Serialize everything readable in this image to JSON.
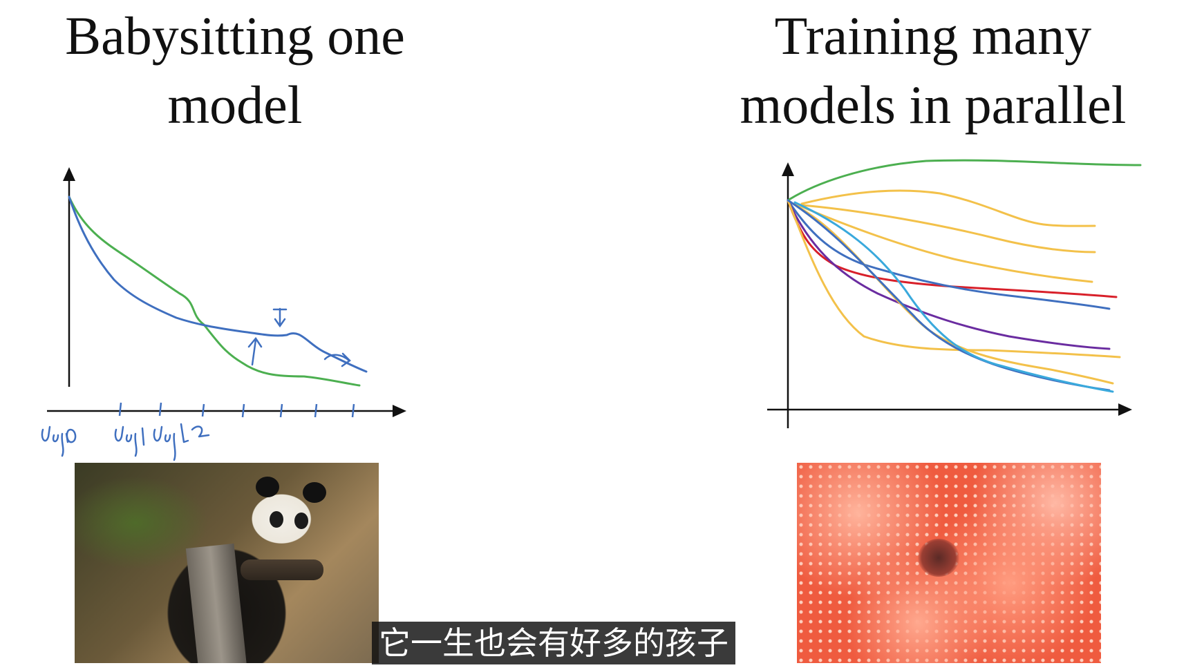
{
  "left": {
    "title_line1": "Babysitting one",
    "title_line2": "model",
    "handwritten_labels": [
      "day 0",
      "day 1",
      "day 2"
    ]
  },
  "right": {
    "title_line1": "Training many",
    "title_line2": "models in parallel"
  },
  "subtitle": "它一生也会有好多的孩子",
  "colors": {
    "green": "#4caf50",
    "blue": "#3f6fbf",
    "yellow": "#f3c14a",
    "red": "#d8202a",
    "purple": "#6a2ca0",
    "cyan": "#3aa9dc"
  }
}
